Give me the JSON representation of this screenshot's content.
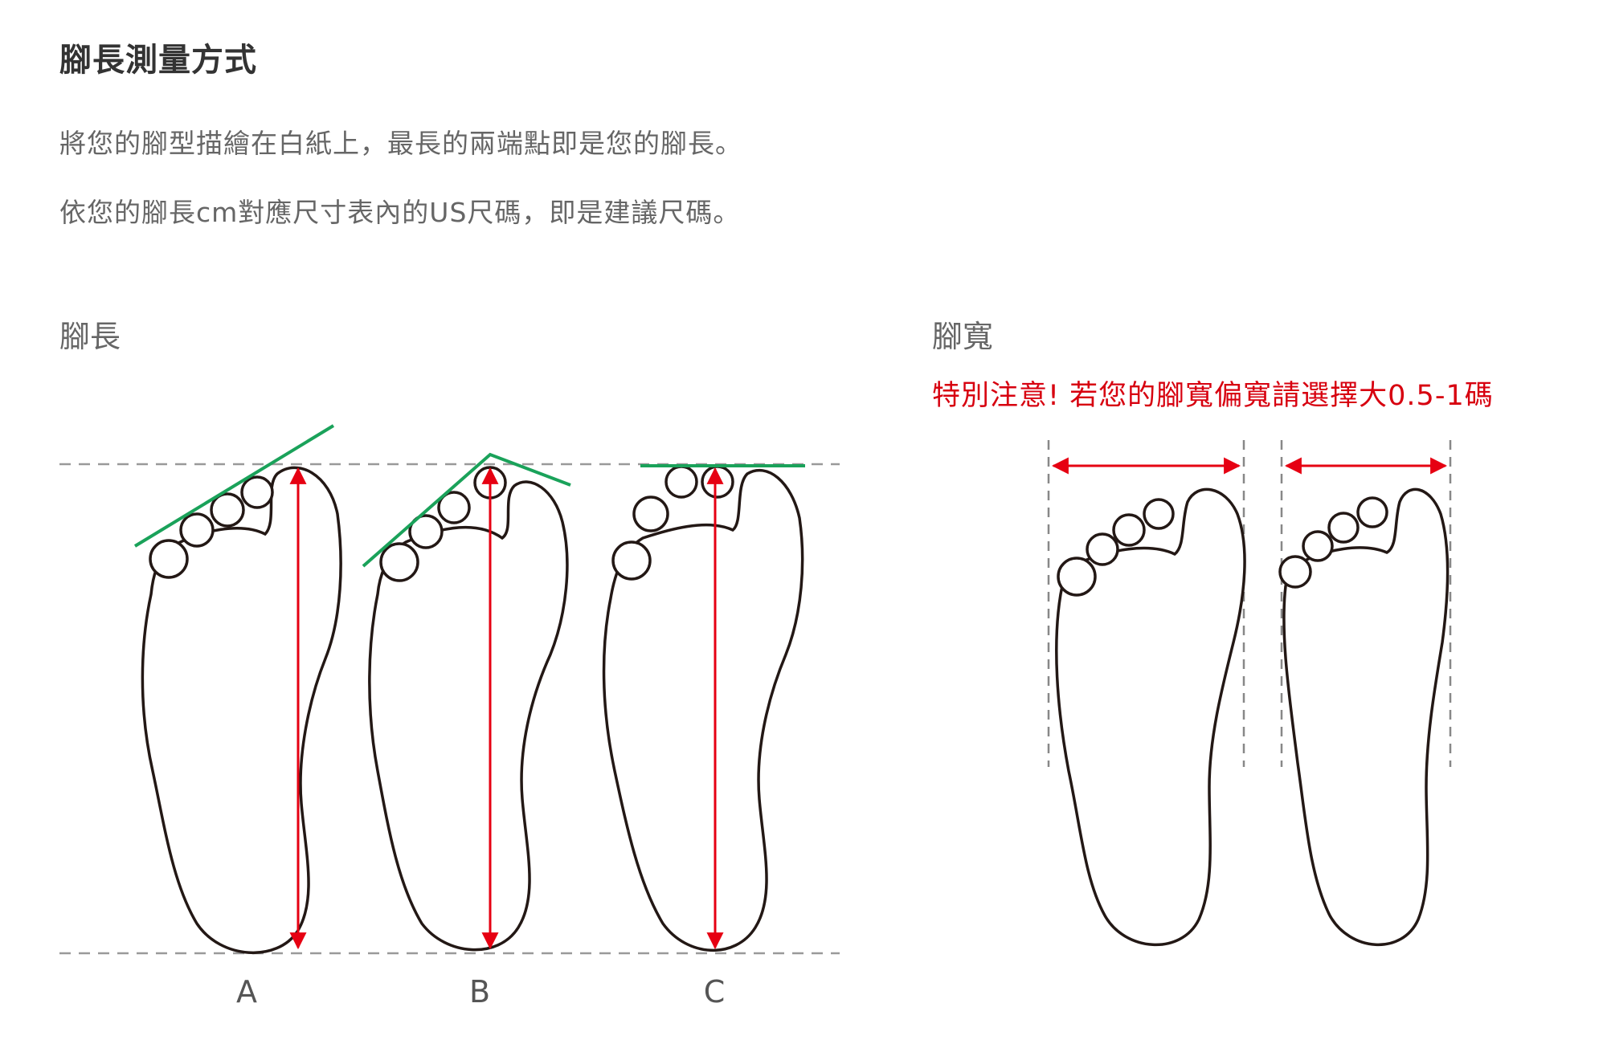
{
  "title": "腳長測量方式",
  "instructions": {
    "line1": "將您的腳型描繪在白紙上，最長的兩端點即是您的腳長。",
    "line2": "依您的腳長cm對應尺寸表內的US尺碼，即是建議尺碼。"
  },
  "foot_length": {
    "heading": "腳長",
    "labels": [
      "A",
      "B",
      "C"
    ]
  },
  "foot_width": {
    "heading": "腳寬",
    "notice": "特別注意! 若您的腳寬偏寬請選擇大0.5-1碼"
  },
  "colors": {
    "measure_arrow": "#e60012",
    "toe_line": "#1aa25a",
    "notice": "#d7000f",
    "outline": "#231815"
  }
}
